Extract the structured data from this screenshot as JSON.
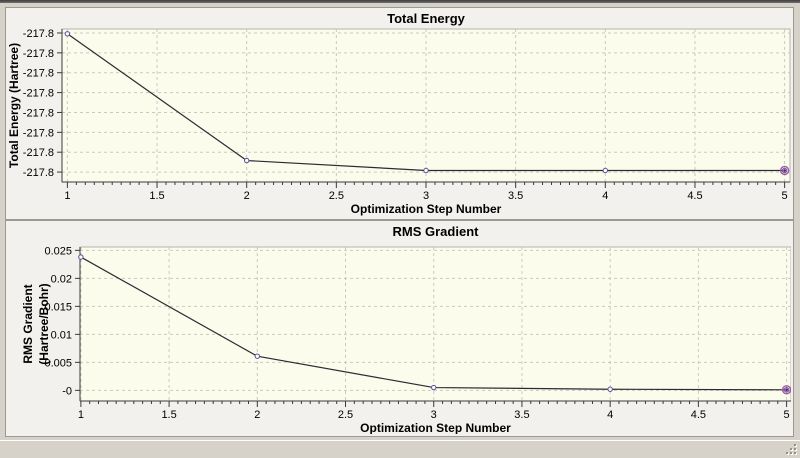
{
  "window": {
    "icons": {
      "resize_grip": "resize-grip-icon"
    }
  },
  "colors": {
    "window_bg": "#d6d2ca",
    "panel_bg": "#f2f1ed",
    "panel_border": "#9a9a92",
    "plot_bg": "#fcfcec",
    "grid": "#c9c9c0",
    "frame": "#b4b4aa",
    "spine": "#3a3a3a",
    "series_line": "#2b2b33",
    "marker": "#5151a3",
    "highlight_ring": "#a855a8",
    "highlight_center": "#5c2a5c",
    "text": "#000000"
  },
  "chart_data": [
    {
      "type": "line",
      "title": "Total Energy",
      "xlabel": "Optimization Step Number",
      "ylabel": "Total Energy (Hartree)",
      "ylabel_lines": [
        "Total Energy (Hartree)"
      ],
      "x": [
        1,
        2,
        3,
        4,
        5
      ],
      "values": [
        -217.7652,
        -217.7971,
        -217.7996,
        -217.7996,
        -217.7996
      ],
      "xlim": [
        0.97,
        5.03
      ],
      "ylim": [
        -217.8025,
        -217.764
      ],
      "xticks": [
        1,
        1.5,
        2,
        2.5,
        3,
        3.5,
        4,
        4.5,
        5
      ],
      "xtick_labels": [
        "1",
        "1.5",
        "2",
        "2.5",
        "3",
        "3.5",
        "4",
        "4.5",
        "5"
      ],
      "yticks": [
        -217.765,
        -217.77,
        -217.775,
        -217.78,
        -217.785,
        -217.79,
        -217.795,
        -217.8
      ],
      "ytick_labels": [
        "-217.8",
        "-217.8",
        "-217.8",
        "-217.8",
        "-217.8",
        "-217.8",
        "-217.8",
        "-217.8"
      ],
      "minor_x_step": 0.05,
      "grid": true,
      "legend": "none",
      "highlight_last_point": true
    },
    {
      "type": "line",
      "title": "RMS Gradient",
      "xlabel": "Optimization Step Number",
      "ylabel": "RMS Gradient (Hartree/Bohr)",
      "ylabel_lines": [
        "RMS Gradient",
        "(Hartree/Bohr)"
      ],
      "x": [
        1,
        2,
        3,
        4,
        5
      ],
      "values": [
        0.0238,
        0.0061,
        0.0005,
        0.0002,
        0.0001
      ],
      "xlim": [
        0.995,
        5.025
      ],
      "ylim": [
        -0.0019,
        0.0256
      ],
      "xticks": [
        1,
        1.5,
        2,
        2.5,
        3,
        3.5,
        4,
        4.5,
        5
      ],
      "xtick_labels": [
        "1",
        "1.5",
        "2",
        "2.5",
        "3",
        "3.5",
        "4",
        "4.5",
        "5"
      ],
      "yticks": [
        0.025,
        0.02,
        0.015,
        0.01,
        0.005,
        0
      ],
      "ytick_labels": [
        "0.025",
        "0.02",
        "0.015",
        "0.01",
        "0.005",
        "-0"
      ],
      "minor_x_step": 0.05,
      "grid": true,
      "legend": "none",
      "highlight_last_point": true
    }
  ]
}
